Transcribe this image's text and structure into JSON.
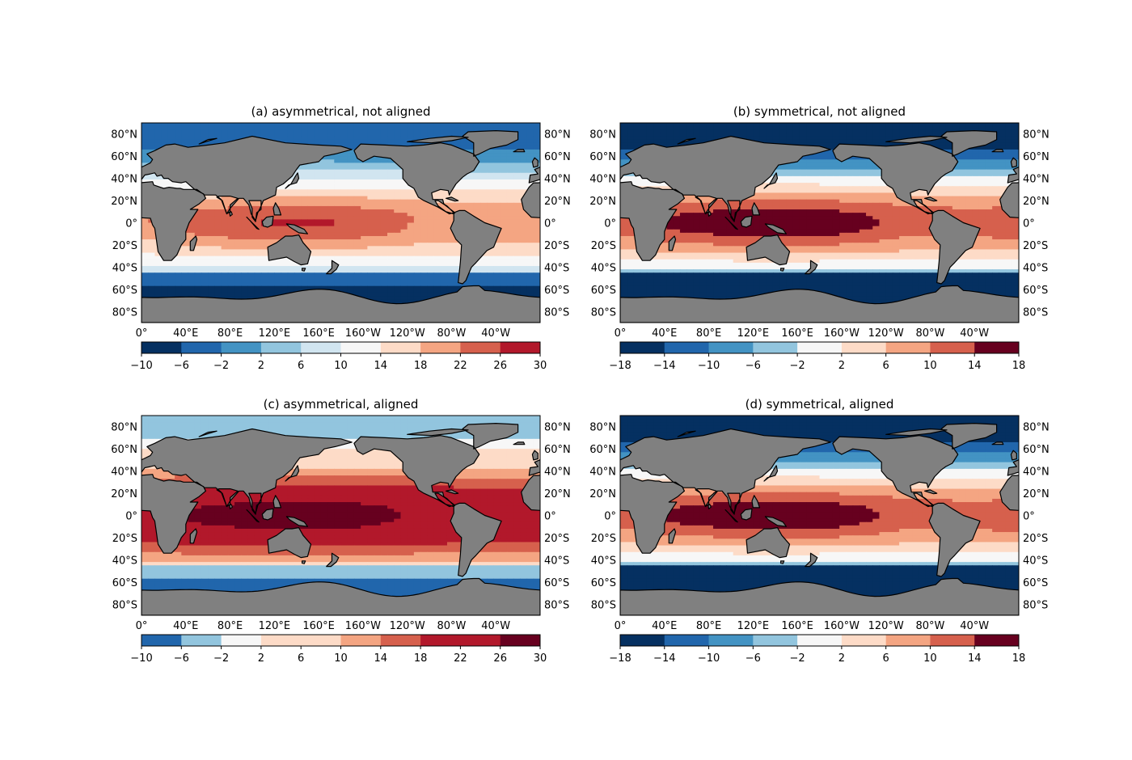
{
  "colors": {
    "land": "#808080",
    "coast": "#000000",
    "cmap": [
      "#053061",
      "#2166ac",
      "#4393c3",
      "#92c5de",
      "#d1e5f0",
      "#f7f7f7",
      "#fddbc7",
      "#f4a582",
      "#d6604d",
      "#b2182b",
      "#67001f"
    ]
  },
  "panels": [
    {
      "id": "a",
      "title": "(a) asymmetrical, not aligned",
      "colorbar": {
        "boundaries": [
          -10,
          -6,
          -2,
          2,
          6,
          10,
          14,
          18,
          22,
          26,
          30
        ],
        "tick_labels": [
          "−10",
          "−6",
          "−2",
          "2",
          "6",
          "10",
          "14",
          "18",
          "22",
          "26",
          "30"
        ],
        "color_indices": [
          0,
          1,
          2,
          3,
          4,
          5,
          6,
          7,
          8,
          9
        ]
      },
      "field": {
        "equator": 24,
        "pole_north": -6,
        "pole_south": -6,
        "south_ocean": -4
      }
    },
    {
      "id": "b",
      "title": "(b) symmetrical, not aligned",
      "colorbar": {
        "boundaries": [
          -18,
          -14,
          -10,
          -6,
          -2,
          2,
          6,
          10,
          14,
          18
        ],
        "tick_labels": [
          "−18",
          "−14",
          "−10",
          "−6",
          "−2",
          "2",
          "6",
          "10",
          "14",
          "18"
        ],
        "color_indices": [
          0,
          1,
          2,
          3,
          5,
          6,
          7,
          8,
          10
        ]
      },
      "field": {
        "equator": 15,
        "pole_north": -18,
        "pole_south": -18,
        "south_ocean": -14
      }
    },
    {
      "id": "c",
      "title": "(c) asymmetrical, aligned",
      "colorbar": {
        "boundaries": [
          -10,
          -6,
          -2,
          2,
          6,
          10,
          14,
          18,
          22,
          26,
          30
        ],
        "tick_labels": [
          "−10",
          "−6",
          "−2",
          "2",
          "6",
          "10",
          "14",
          "18",
          "22",
          "26",
          "30"
        ],
        "color_indices": [
          1,
          3,
          5,
          6,
          6,
          7,
          8,
          9,
          9,
          10
        ]
      },
      "field": {
        "equator": 27,
        "pole_north": -5,
        "pole_south": -5,
        "south_ocean": -4
      }
    },
    {
      "id": "d",
      "title": "(d) symmetrical, aligned",
      "colorbar": {
        "boundaries": [
          -18,
          -14,
          -10,
          -6,
          -2,
          2,
          6,
          10,
          14,
          18
        ],
        "tick_labels": [
          "−18",
          "−14",
          "−10",
          "−6",
          "−2",
          "2",
          "6",
          "10",
          "14",
          "18"
        ],
        "color_indices": [
          0,
          1,
          2,
          3,
          5,
          6,
          7,
          8,
          10
        ]
      },
      "field": {
        "equator": 15,
        "pole_north": -18,
        "pole_south": -18,
        "south_ocean": -14
      }
    }
  ],
  "lon_ticks": [
    {
      "lon": 0,
      "label": "0°"
    },
    {
      "lon": 40,
      "label": "40°E"
    },
    {
      "lon": 80,
      "label": "80°E"
    },
    {
      "lon": 120,
      "label": "120°E"
    },
    {
      "lon": 160,
      "label": "160°E"
    },
    {
      "lon": 200,
      "label": "160°W"
    },
    {
      "lon": 240,
      "label": "120°W"
    },
    {
      "lon": 280,
      "label": "80°W"
    },
    {
      "lon": 320,
      "label": "40°W"
    }
  ],
  "lat_ticks": [
    {
      "lat": 80,
      "label": "80°N"
    },
    {
      "lat": 60,
      "label": "60°N"
    },
    {
      "lat": 40,
      "label": "40°N"
    },
    {
      "lat": 20,
      "label": "20°N"
    },
    {
      "lat": 0,
      "label": "0°"
    },
    {
      "lat": -20,
      "label": "20°S"
    },
    {
      "lat": -40,
      "label": "40°S"
    },
    {
      "lat": -60,
      "label": "60°S"
    },
    {
      "lat": -80,
      "label": "80°S"
    }
  ]
}
